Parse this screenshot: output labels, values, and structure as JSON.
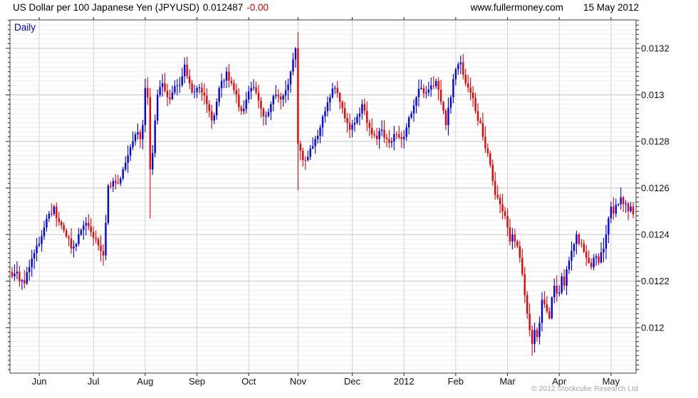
{
  "header": {
    "title_instrument": "US Dollar per 100 Japanese Yen (JPYUSD)",
    "title_price": "0.012487",
    "title_change": "-0.00",
    "website": "www.fullermoney.com",
    "date": "15 May 2012"
  },
  "chart": {
    "frequency_label": "Daily",
    "copyright": "© 2012 Stockcube Research Ltd",
    "colors": {
      "up_candle": "#0000ee",
      "down_candle": "#ee0000",
      "major_grid": "#c6c6c6",
      "minor_grid": "#ededed",
      "month_grid": "#d2d2d2",
      "frame": "#3c3c3c",
      "axis_text": "#111111",
      "daily_label": "#0000cc",
      "change_text": "#cc0000",
      "copyright_text": "#a3a3a3"
    }
  },
  "chart_data": {
    "type": "candlestick",
    "title": "US Dollar per 100 Japanese Yen (JPYUSD)",
    "frequency": "Daily",
    "last_price": 0.012487,
    "change_label": "-0.00",
    "date": "15 May 2012",
    "x_axis": {
      "labels": [
        "Jun",
        "Jul",
        "Aug",
        "Sep",
        "Oct",
        "Nov",
        "Dec",
        "2012",
        "Feb",
        "Mar",
        "Apr",
        "May"
      ],
      "month_day_index": [
        11,
        33,
        54,
        75,
        96,
        116,
        138,
        159,
        180,
        201,
        222,
        243
      ]
    },
    "y_axis": {
      "tick_values": [
        0.0132,
        0.013,
        0.0128,
        0.0126,
        0.0124,
        0.0122,
        0.012
      ],
      "tick_labels": [
        "0.0132",
        "0.013",
        "0.0128",
        "0.0126",
        "0.0124",
        "0.0122",
        "0.012"
      ],
      "range": [
        0.01181,
        0.01333
      ],
      "major_step": 0.0002,
      "minor_step": 2e-05
    },
    "num_days": 253,
    "series_high": 0.01327,
    "series_low": 0.01188,
    "close_anchors": [
      [
        0,
        0.01222
      ],
      [
        2,
        0.01224
      ],
      [
        3,
        0.0122
      ],
      [
        5,
        0.01219
      ],
      [
        7,
        0.01226
      ],
      [
        9,
        0.01232
      ],
      [
        11,
        0.01236
      ],
      [
        13,
        0.01243
      ],
      [
        15,
        0.01249
      ],
      [
        17,
        0.01252
      ],
      [
        18,
        0.01247
      ],
      [
        20,
        0.01244
      ],
      [
        22,
        0.01239
      ],
      [
        24,
        0.01234
      ],
      [
        26,
        0.01236
      ],
      [
        28,
        0.01242
      ],
      [
        30,
        0.01245
      ],
      [
        32,
        0.01241
      ],
      [
        34,
        0.01238
      ],
      [
        36,
        0.01233
      ],
      [
        37,
        0.01231
      ],
      [
        38,
        0.01245
      ],
      [
        39,
        0.01261
      ],
      [
        41,
        0.01263
      ],
      [
        43,
        0.01262
      ],
      [
        45,
        0.01268
      ],
      [
        47,
        0.01274
      ],
      [
        49,
        0.0128
      ],
      [
        51,
        0.01284
      ],
      [
        52,
        0.01281
      ],
      [
        53,
        0.01287
      ],
      [
        54,
        0.01303
      ],
      [
        55,
        0.01299
      ],
      [
        56,
        0.01268
      ],
      [
        57,
        0.01275
      ],
      [
        58,
        0.01289
      ],
      [
        59,
        0.013
      ],
      [
        61,
        0.01305
      ],
      [
        63,
        0.01299
      ],
      [
        65,
        0.01301
      ],
      [
        67,
        0.01304
      ],
      [
        69,
        0.01308
      ],
      [
        70,
        0.01313
      ],
      [
        71,
        0.01308
      ],
      [
        73,
        0.01301
      ],
      [
        75,
        0.01303
      ],
      [
        77,
        0.01301
      ],
      [
        79,
        0.01296
      ],
      [
        81,
        0.01289
      ],
      [
        83,
        0.01297
      ],
      [
        85,
        0.01306
      ],
      [
        87,
        0.0131
      ],
      [
        89,
        0.01305
      ],
      [
        91,
        0.013
      ],
      [
        93,
        0.01293
      ],
      [
        95,
        0.01298
      ],
      [
        97,
        0.01303
      ],
      [
        99,
        0.01301
      ],
      [
        101,
        0.01294
      ],
      [
        103,
        0.01291
      ],
      [
        105,
        0.01296
      ],
      [
        107,
        0.013
      ],
      [
        109,
        0.01298
      ],
      [
        111,
        0.01302
      ],
      [
        113,
        0.0131
      ],
      [
        115,
        0.0132
      ],
      [
        116,
        0.01279
      ],
      [
        117,
        0.01276
      ],
      [
        119,
        0.01272
      ],
      [
        121,
        0.01277
      ],
      [
        123,
        0.01281
      ],
      [
        125,
        0.01286
      ],
      [
        127,
        0.01293
      ],
      [
        129,
        0.01299
      ],
      [
        131,
        0.01303
      ],
      [
        133,
        0.01297
      ],
      [
        135,
        0.0129
      ],
      [
        137,
        0.01285
      ],
      [
        139,
        0.01288
      ],
      [
        141,
        0.01292
      ],
      [
        142,
        0.01296
      ],
      [
        144,
        0.01288
      ],
      [
        146,
        0.01283
      ],
      [
        148,
        0.01281
      ],
      [
        150,
        0.01285
      ],
      [
        152,
        0.01281
      ],
      [
        154,
        0.0128
      ],
      [
        156,
        0.01283
      ],
      [
        158,
        0.01281
      ],
      [
        160,
        0.01286
      ],
      [
        162,
        0.01292
      ],
      [
        164,
        0.01299
      ],
      [
        166,
        0.01303
      ],
      [
        168,
        0.01301
      ],
      [
        170,
        0.01304
      ],
      [
        172,
        0.01306
      ],
      [
        174,
        0.01297
      ],
      [
        176,
        0.01287
      ],
      [
        178,
        0.01299
      ],
      [
        180,
        0.01311
      ],
      [
        182,
        0.01314
      ],
      [
        184,
        0.01305
      ],
      [
        186,
        0.01301
      ],
      [
        188,
        0.01293
      ],
      [
        190,
        0.01288
      ],
      [
        191,
        0.01282
      ],
      [
        192,
        0.01277
      ],
      [
        194,
        0.0127
      ],
      [
        195,
        0.01263
      ],
      [
        196,
        0.01257
      ],
      [
        198,
        0.01253
      ],
      [
        200,
        0.01248
      ],
      [
        201,
        0.01243
      ],
      [
        202,
        0.01237
      ],
      [
        203,
        0.0124
      ],
      [
        205,
        0.01235
      ],
      [
        206,
        0.0123
      ],
      [
        207,
        0.01223
      ],
      [
        208,
        0.01214
      ],
      [
        209,
        0.01206
      ],
      [
        210,
        0.01199
      ],
      [
        211,
        0.01193
      ],
      [
        212,
        0.01199
      ],
      [
        213,
        0.01196
      ],
      [
        214,
        0.01202
      ],
      [
        215,
        0.01212
      ],
      [
        216,
        0.0121
      ],
      [
        217,
        0.01207
      ],
      [
        218,
        0.01204
      ],
      [
        219,
        0.01213
      ],
      [
        220,
        0.01218
      ],
      [
        222,
        0.01215
      ],
      [
        223,
        0.01222
      ],
      [
        224,
        0.01218
      ],
      [
        225,
        0.01225
      ],
      [
        227,
        0.01233
      ],
      [
        229,
        0.0124
      ],
      [
        231,
        0.01236
      ],
      [
        233,
        0.0123
      ],
      [
        235,
        0.01226
      ],
      [
        236,
        0.0123
      ],
      [
        238,
        0.01228
      ],
      [
        240,
        0.01234
      ],
      [
        241,
        0.0124
      ],
      [
        242,
        0.01247
      ],
      [
        243,
        0.01252
      ],
      [
        244,
        0.01249
      ],
      [
        246,
        0.01253
      ],
      [
        247,
        0.01256
      ],
      [
        248,
        0.01253
      ],
      [
        250,
        0.0125
      ],
      [
        251,
        0.01252
      ],
      [
        252,
        0.012487
      ]
    ],
    "key_candles": {
      "56": [
        0.01299,
        0.01303,
        0.01247,
        0.01268
      ],
      "70": [
        0.01308,
        0.01316,
        0.01305,
        0.01313
      ],
      "116": [
        0.0132,
        0.01327,
        0.01259,
        0.01279
      ],
      "211": [
        0.01199,
        0.01201,
        0.01188,
        0.01193
      ],
      "252": [
        0.01252,
        0.01254,
        0.01247,
        0.012487
      ]
    }
  }
}
